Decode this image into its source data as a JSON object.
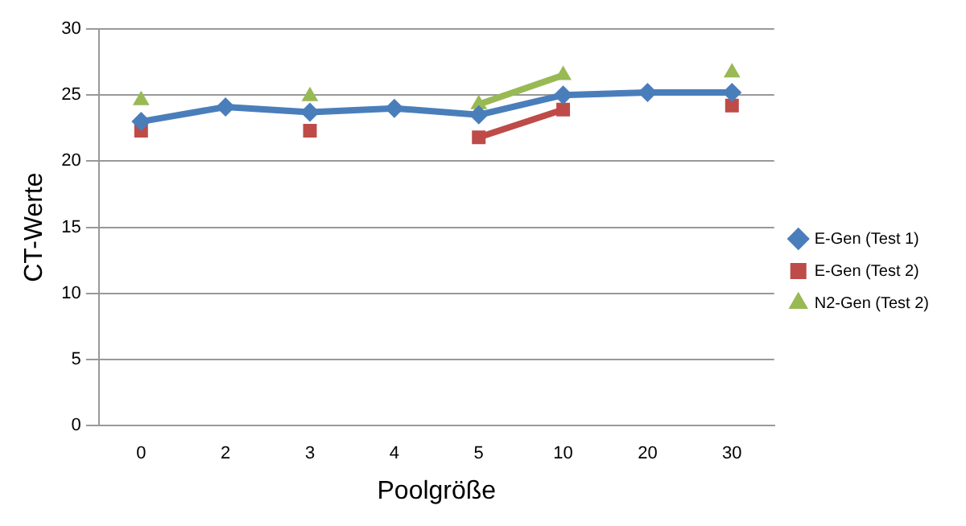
{
  "chart_data": {
    "type": "line",
    "xlabel": "Poolgröße",
    "ylabel": "CT-Werte",
    "categories": [
      "0",
      "2",
      "3",
      "4",
      "5",
      "10",
      "20",
      "30"
    ],
    "series": [
      {
        "name": "E-Gen (Test 1)",
        "color": "#4a7ebb",
        "marker": "diamond",
        "values": [
          23.0,
          24.1,
          23.7,
          24.0,
          23.5,
          25.0,
          25.2,
          25.2
        ]
      },
      {
        "name": "E-Gen (Test 2)",
        "color": "#be4b48",
        "marker": "square",
        "values": [
          22.3,
          null,
          22.3,
          null,
          21.8,
          23.9,
          null,
          24.2
        ]
      },
      {
        "name": "N2-Gen (Test 2)",
        "color": "#98b954",
        "marker": "triangle",
        "values": [
          24.6,
          null,
          24.9,
          null,
          24.3,
          26.5,
          null,
          26.7
        ]
      }
    ],
    "ylim": [
      0,
      30
    ],
    "yticks": [
      0,
      5,
      10,
      15,
      20,
      25,
      30
    ],
    "grid": "y",
    "legend": "right"
  }
}
